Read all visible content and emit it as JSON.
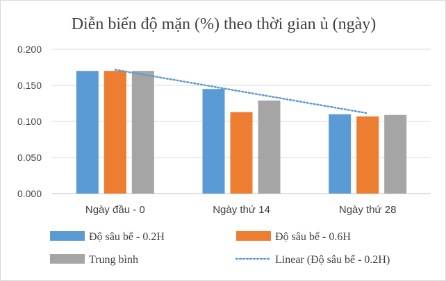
{
  "chart_data": {
    "type": "bar",
    "title": "Diễn biến độ mặn (%) theo thời gian ủ (ngày)",
    "xlabel": "",
    "ylabel": "",
    "categories": [
      "Ngày đầu - 0",
      "Ngày thứ 14",
      "Ngày thứ 28"
    ],
    "ylim": [
      0,
      0.2
    ],
    "yticks": [
      "0.000",
      "0.050",
      "0.100",
      "0.150",
      "0.200"
    ],
    "grid": true,
    "legend_position": "bottom",
    "series": [
      {
        "name": "Độ sâu bể - 0.2H",
        "values": [
          0.17,
          0.145,
          0.11
        ],
        "color": "#5b9bd5"
      },
      {
        "name": "Độ sâu bể - 0.6H",
        "values": [
          0.17,
          0.113,
          0.107
        ],
        "color": "#ed7d31"
      },
      {
        "name": "Trung bình",
        "values": [
          0.17,
          0.129,
          0.109
        ],
        "color": "#a5a5a5"
      }
    ],
    "trendline": {
      "name": "Linear  (Độ sâu bể - 0.2H)",
      "type": "linear",
      "of_series": "Độ sâu bể - 0.2H",
      "color": "#5b9bd5"
    }
  }
}
